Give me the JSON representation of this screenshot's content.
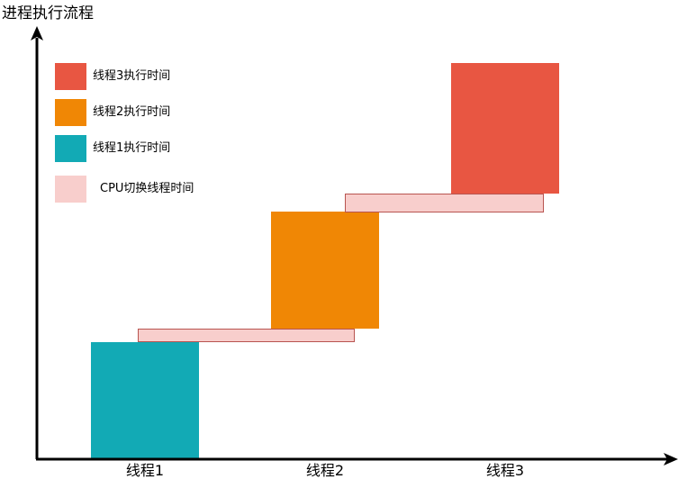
{
  "diagram": {
    "y_axis_title": "进程执行流程",
    "threads": [
      "线程1",
      "线程2",
      "线程3"
    ],
    "legend": [
      {
        "label": "线程3执行时间",
        "color": "#e85642",
        "kind": "thread3-exec"
      },
      {
        "label": "线程2执行时间",
        "color": "#f08705",
        "kind": "thread2-exec"
      },
      {
        "label": "线程1执行时间",
        "color": "#12aab5",
        "kind": "thread1-exec"
      },
      {
        "label": "CPU切换线程时间",
        "color": "#f8cecc",
        "kind": "cpu-switch"
      }
    ],
    "switch_border_color": "#b85450",
    "axis_color": "#000000"
  }
}
